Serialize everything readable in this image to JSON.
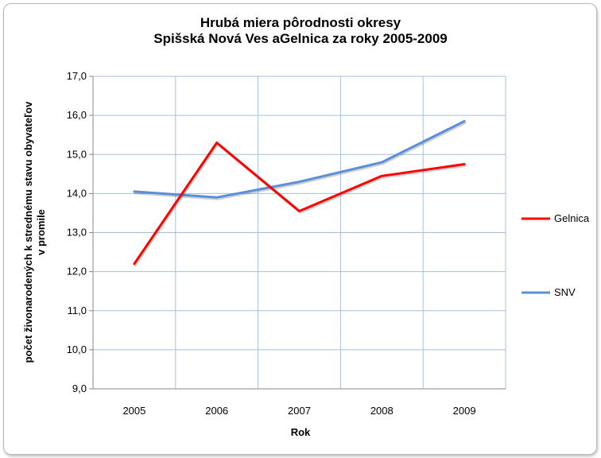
{
  "chart_data": {
    "type": "line",
    "title": [
      "Hrubá miera pôrodnosti okresy",
      "Spišská Nová Ves aGelnica za roky 2005-2009"
    ],
    "xlabel": "Rok",
    "ylabel": [
      "počet živonarodených  k strednému  stavu  obyvateľov",
      "v promile"
    ],
    "categories": [
      "2005",
      "2006",
      "2007",
      "2008",
      "2009"
    ],
    "ylim": [
      9.0,
      17.0
    ],
    "yticks": [
      "9,0",
      "10,0",
      "11,0",
      "12,0",
      "13,0",
      "14,0",
      "15,0",
      "16,0",
      "17,0"
    ],
    "grid": true,
    "legend_position": "right",
    "series": [
      {
        "name": "Gelnica",
        "color": "#ff0000",
        "values": [
          12.2,
          15.3,
          13.55,
          14.45,
          14.75
        ]
      },
      {
        "name": "SNV",
        "color": "#5b8fd6",
        "values": [
          14.05,
          13.9,
          14.3,
          14.8,
          15.85
        ]
      }
    ]
  }
}
